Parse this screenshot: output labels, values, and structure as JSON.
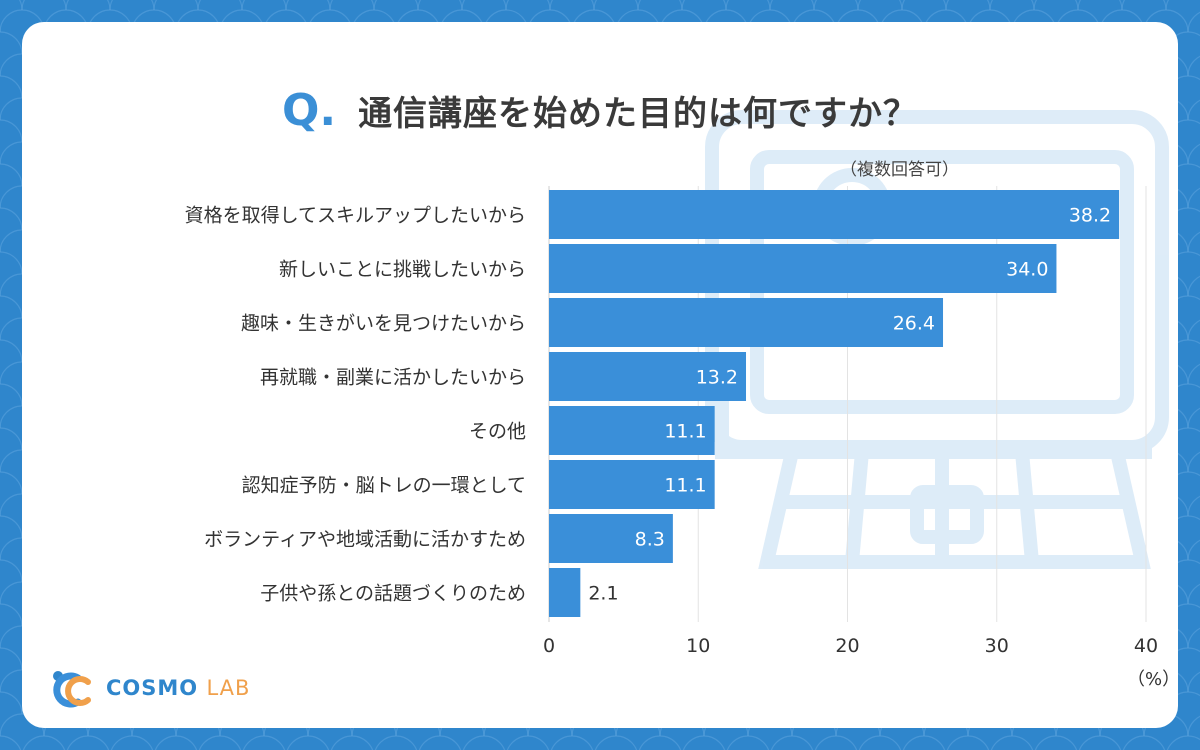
{
  "title": {
    "q_mark": "Q",
    "text": "通信講座を始めた目的は何ですか？",
    "note": "（複数回答可）"
  },
  "logo": {
    "brand": "COSMO",
    "suffix": "LAB"
  },
  "colors": {
    "bar": "#3a8fd9",
    "background": "#2f86cc",
    "accent": "#3b8fd6",
    "logo_suffix": "#f0a04b"
  },
  "chart_data": {
    "type": "bar",
    "orientation": "horizontal",
    "categories": [
      "資格を取得してスキルアップしたいから",
      "新しいことに挑戦したいから",
      "趣味・生きがいを見つけたいから",
      "再就職・副業に活かしたいから",
      "その他",
      "認知症予防・脳トレの一環として",
      "ボランティアや地域活動に活かすため",
      "子供や孫との話題づくりのため"
    ],
    "values": [
      38.2,
      34.0,
      26.4,
      13.2,
      11.1,
      11.1,
      8.3,
      2.1
    ],
    "value_labels": [
      "38.2",
      "34.0",
      "26.4",
      "13.2",
      "11.1",
      "11.1",
      "8.3",
      "2.1"
    ],
    "xlim": [
      0,
      40
    ],
    "xticks": [
      "0",
      "10",
      "20",
      "30",
      "40"
    ],
    "unit": "（%）",
    "grid": true
  }
}
